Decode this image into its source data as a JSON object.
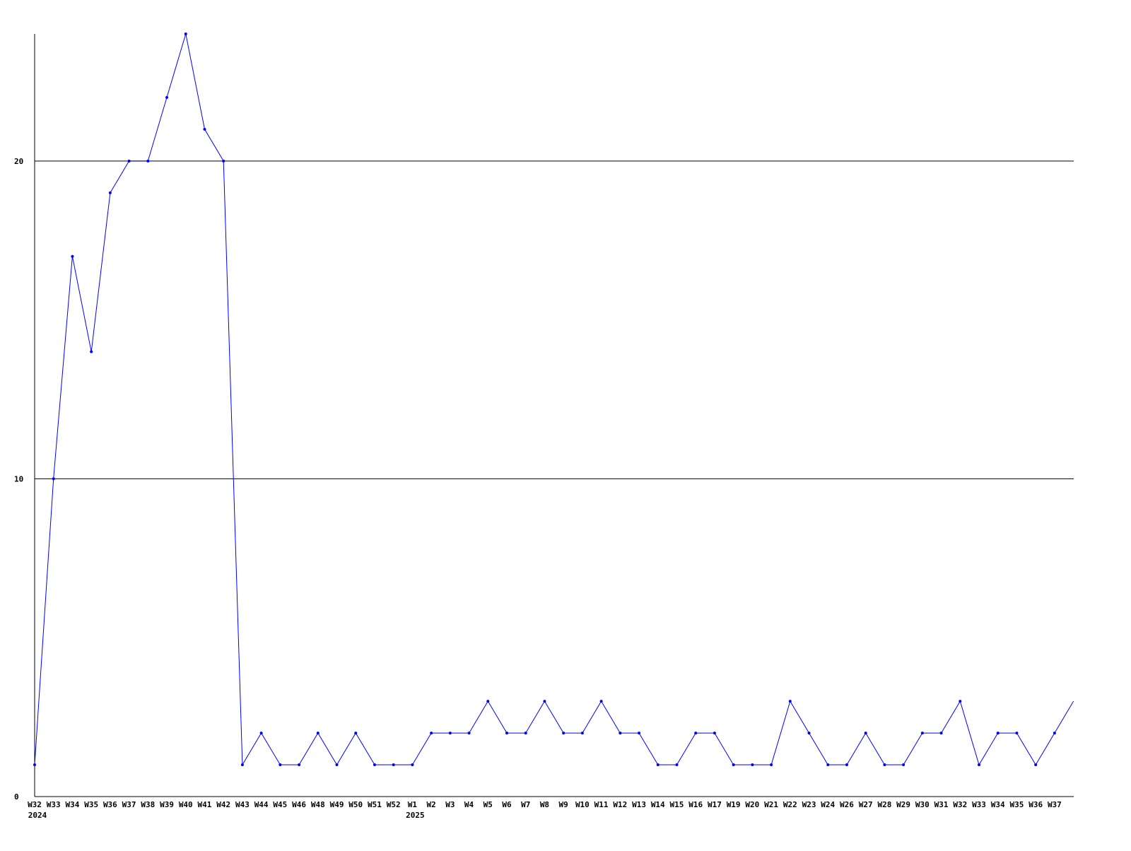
{
  "chart_data": {
    "type": "line",
    "title": "",
    "xlabel": "",
    "ylabel": "",
    "ylim": [
      0,
      24
    ],
    "yticks": [
      0,
      10,
      20
    ],
    "grid": true,
    "line_color": "#0000ff",
    "categories": [
      "W32",
      "W33",
      "W34",
      "W35",
      "W36",
      "W37",
      "W38",
      "W39",
      "W40",
      "W41",
      "W42",
      "W43",
      "W44",
      "W45",
      "W46",
      "W48",
      "W49",
      "W50",
      "W51",
      "W52",
      "W1",
      "W2",
      "W3",
      "W4",
      "W5",
      "W6",
      "W7",
      "W8",
      "W9",
      "W10",
      "W11",
      "W12",
      "W13",
      "W14",
      "W15",
      "W16",
      "W17",
      "W19",
      "W20",
      "W21",
      "W22",
      "W23",
      "W24",
      "W26",
      "W27",
      "W28",
      "W29",
      "W30",
      "W31",
      "W32",
      "W33",
      "W34",
      "W35",
      "W36",
      "W37",
      ""
    ],
    "year_labels": [
      {
        "index": 0,
        "label": "2024"
      },
      {
        "index": 20,
        "label": "2025"
      }
    ],
    "values": [
      1,
      10,
      17,
      14,
      19,
      20,
      20,
      22,
      24,
      21,
      20,
      1,
      2,
      1,
      1,
      2,
      1,
      2,
      1,
      1,
      1,
      2,
      2,
      2,
      3,
      2,
      2,
      3,
      2,
      2,
      3,
      2,
      2,
      1,
      1,
      2,
      2,
      1,
      1,
      1,
      3,
      2,
      1,
      1,
      2,
      1,
      1,
      2,
      2,
      3,
      1,
      2,
      2,
      1,
      2,
      3
    ]
  }
}
